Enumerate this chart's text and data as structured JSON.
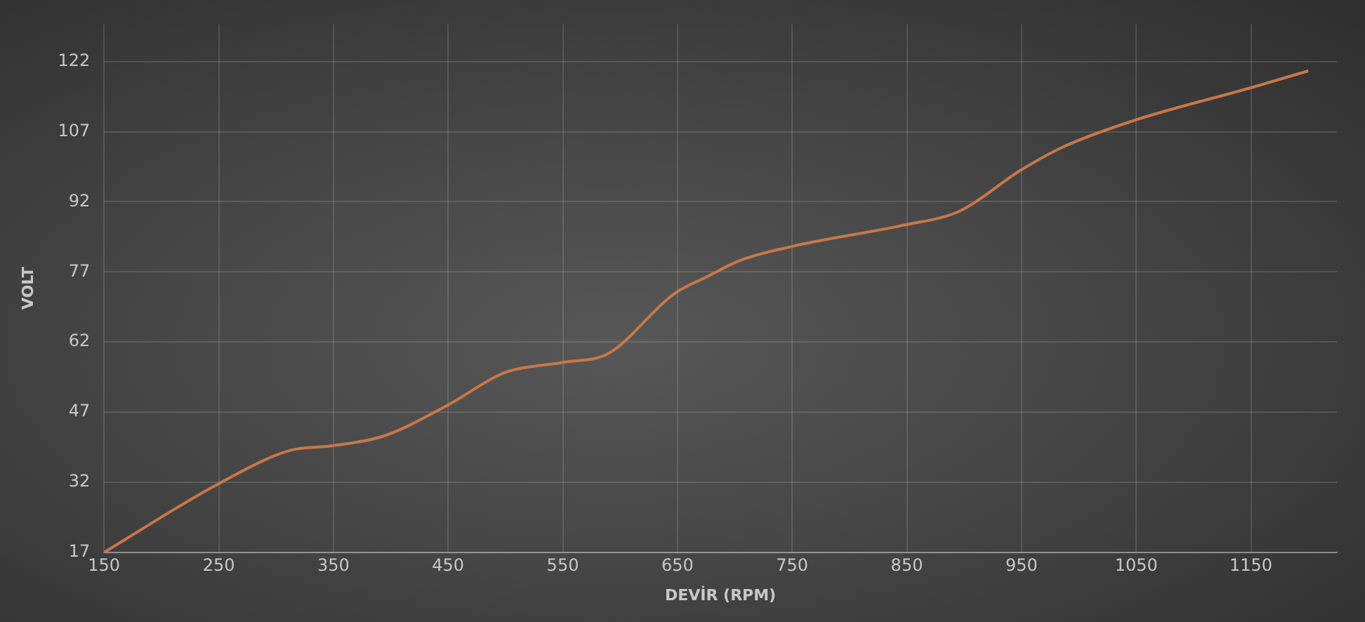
{
  "chart_data": {
    "type": "line",
    "xlabel": "DEVİR (RPM)",
    "ylabel": "VOLT",
    "x": [
      150,
      250,
      312,
      349,
      394,
      449,
      500,
      549,
      590,
      647,
      676,
      704,
      749,
      847,
      896,
      949,
      986,
      1047,
      1150,
      1200
    ],
    "series": [
      {
        "color": "#c8784a",
        "values": [
          17,
          31.7,
          38.8,
          39.8,
          41.9,
          48.4,
          55.5,
          57.6,
          59.6,
          72.3,
          76,
          79.4,
          82.4,
          87,
          90,
          98.7,
          103.7,
          109.3,
          116.4,
          120
        ]
      }
    ],
    "xlim": [
      150,
      1225
    ],
    "xticks": [
      150,
      250,
      350,
      450,
      550,
      650,
      750,
      850,
      950,
      1050,
      1150
    ],
    "ylim": [
      17,
      130
    ],
    "yticks": [
      17,
      32,
      47,
      62,
      77,
      92,
      107,
      122
    ],
    "grid": true,
    "legend": false,
    "marker": "none",
    "line_style": "solid"
  }
}
